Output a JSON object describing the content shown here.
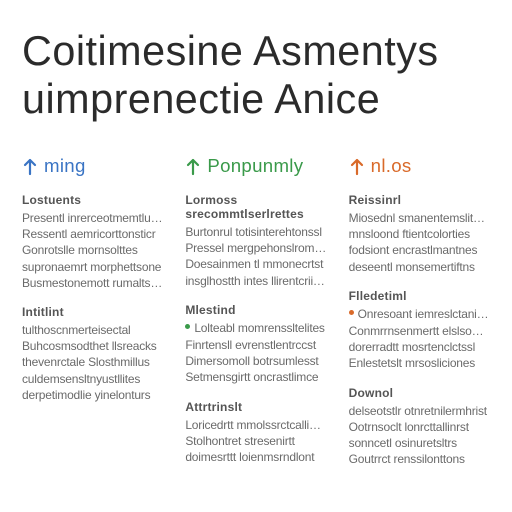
{
  "title": {
    "line1": "Coitimesine  Asmentys",
    "line2": "uimprenectie  Anice",
    "fontsize_pt": 31,
    "color": "#2b2b2b"
  },
  "body_fontsize_pt": 9,
  "header_fontsize_pt": 14,
  "section_title_fontsize_pt": 9,
  "background_color": "#ffffff",
  "columns": [
    {
      "header": {
        "label": "ming",
        "color": "#3a74c4",
        "arrow_color": "#3a74c4"
      },
      "sections": [
        {
          "title": "Lostuents",
          "lines": [
            {
              "text": "Presentl inrerceotmemtluces",
              "bullet": false
            },
            {
              "text": "Ressentl aemricorttonsticr",
              "bullet": false
            },
            {
              "text": "Gonrotslle mornsolttes",
              "bullet": false
            },
            {
              "text": "supronaemrt morphettsone",
              "bullet": false
            },
            {
              "text": "Busmestonemott rumalts ane",
              "bullet": false
            }
          ]
        },
        {
          "title": "Intitlint",
          "lines": [
            {
              "text": "tulthoscnmerteisectal",
              "bullet": false
            },
            {
              "text": "Buhcosmsodthet llsreacks",
              "bullet": false
            },
            {
              "text": "thevenrctale Slosthmillus",
              "bullet": false
            },
            {
              "text": "culdemsensltnyustllites",
              "bullet": false
            },
            {
              "text": "derpetimodlie yinelonturs",
              "bullet": false
            }
          ]
        }
      ]
    },
    {
      "header": {
        "label": "Ponpunmly",
        "color": "#3a9a4a",
        "arrow_color": "#3a9a4a"
      },
      "sections": [
        {
          "title": "Lormoss srecommtlserlrettes",
          "lines": [
            {
              "text": "Burtonrul totisinterehtonssl",
              "bullet": false
            },
            {
              "text": "Pressel mergpehonslromtrercd",
              "bullet": false
            },
            {
              "text": "Doesainmen tl mmonecrtst",
              "bullet": false
            },
            {
              "text": "insglhostth intes llirentcriictst",
              "bullet": false
            }
          ]
        },
        {
          "title": "Mlestind",
          "lines": [
            {
              "text": "Lolteabl momrenssltelites",
              "bullet": true,
              "bullet_color": "#3a9a4a"
            },
            {
              "text": "Finrtensll evrenstlentrccst",
              "bullet": false
            },
            {
              "text": "Dimersomoll botrsumlesst",
              "bullet": false
            },
            {
              "text": "Setmensgirtt oncrastlimce",
              "bullet": false
            }
          ]
        },
        {
          "title": "Attrtrinslt",
          "lines": [
            {
              "text": "Loricedrtt mmolssrctcallicse",
              "bullet": false
            },
            {
              "text": "Stolhontret stresenirtt",
              "bullet": false
            },
            {
              "text": "doimesrttt loienmsrndlont",
              "bullet": false
            }
          ]
        }
      ]
    },
    {
      "header": {
        "label": "nl.os",
        "color": "#d96a2a",
        "arrow_color": "#d96a2a"
      },
      "sections": [
        {
          "title": "Reissinrl",
          "lines": [
            {
              "text": "Miosednl smanentemslitance",
              "bullet": false
            },
            {
              "text": "mnsloond ftientcolorties",
              "bullet": false
            },
            {
              "text": "fodsiont encrastlmantnes",
              "bullet": false
            },
            {
              "text": "deseentl monsemertiftns",
              "bullet": false
            }
          ]
        },
        {
          "title": "Flledetiml",
          "lines": [
            {
              "text": "Onresoant iemreslctaniste",
              "bullet": true,
              "bullet_color": "#d96a2a"
            },
            {
              "text": "Conmrrnsenmertt elslsontss",
              "bullet": false
            },
            {
              "text": "dorerradtt mosrtenclctssl",
              "bullet": false
            },
            {
              "text": "Enlestetslt mrsosliciones",
              "bullet": false
            }
          ]
        },
        {
          "title": "Downol",
          "lines": [
            {
              "text": "delseotstlr otnretnilermhrist",
              "bullet": false
            },
            {
              "text": "Ootrnsoclt lonrcttallinrst",
              "bullet": false
            },
            {
              "text": "sonncetl osinuretsltrs",
              "bullet": false
            },
            {
              "text": "Goutrrct renssilonttons",
              "bullet": false
            }
          ]
        }
      ]
    }
  ]
}
